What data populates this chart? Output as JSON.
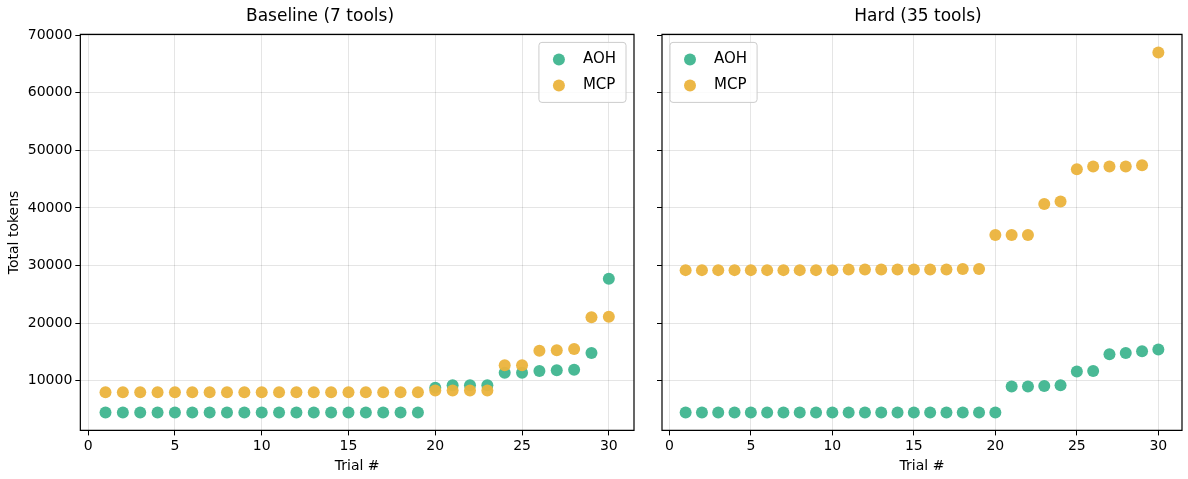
{
  "chart_data": [
    {
      "type": "scatter",
      "title": "Baseline (7 tools)",
      "xlabel": "Trial #",
      "ylabel": "Total tokens",
      "x": [
        1,
        2,
        3,
        4,
        5,
        6,
        7,
        8,
        9,
        10,
        11,
        12,
        13,
        14,
        15,
        16,
        17,
        18,
        19,
        20,
        21,
        22,
        23,
        24,
        25,
        26,
        27,
        28,
        29,
        30
      ],
      "series": [
        {
          "name": "AOH",
          "color": "#3fb58f",
          "values": [
            4500,
            4500,
            4500,
            4500,
            4500,
            4500,
            4500,
            4500,
            4500,
            4500,
            4500,
            4500,
            4500,
            4500,
            4500,
            4500,
            4500,
            4500,
            4500,
            8800,
            9200,
            9200,
            9200,
            11400,
            11400,
            11700,
            11800,
            11900,
            14800,
            27700
          ]
        },
        {
          "name": "MCP",
          "color": "#ebb33c",
          "values": [
            8000,
            8000,
            8000,
            8000,
            8000,
            8000,
            8000,
            8000,
            8000,
            8000,
            8000,
            8000,
            8000,
            8000,
            8000,
            8000,
            8000,
            8000,
            8000,
            8300,
            8300,
            8300,
            8300,
            12700,
            12700,
            15200,
            15300,
            15500,
            21000,
            21100
          ]
        }
      ],
      "xlim": [
        -0.45,
        31.45
      ],
      "xticks": [
        0,
        5,
        10,
        15,
        20,
        25,
        30
      ],
      "ylim": [
        1375,
        70125
      ],
      "yticks": [
        10000,
        20000,
        30000,
        40000,
        50000,
        60000,
        70000
      ],
      "grid": true,
      "legend": "top right",
      "marker": "circle"
    },
    {
      "type": "scatter",
      "title": "Hard (35 tools)",
      "xlabel": "Trial #",
      "x": [
        1,
        2,
        3,
        4,
        5,
        6,
        7,
        8,
        9,
        10,
        11,
        12,
        13,
        14,
        15,
        16,
        17,
        18,
        19,
        20,
        21,
        22,
        23,
        24,
        25,
        26,
        27,
        28,
        29,
        30
      ],
      "series": [
        {
          "name": "AOH",
          "color": "#3fb58f",
          "values": [
            4500,
            4500,
            4500,
            4500,
            4500,
            4500,
            4500,
            4500,
            4500,
            4500,
            4500,
            4500,
            4500,
            4500,
            4500,
            4500,
            4500,
            4500,
            4500,
            4500,
            9000,
            9000,
            9100,
            9200,
            11600,
            11700,
            14600,
            14800,
            15100,
            15400
          ]
        },
        {
          "name": "MCP",
          "color": "#ebb33c",
          "values": [
            29200,
            29200,
            29200,
            29200,
            29200,
            29200,
            29200,
            29200,
            29200,
            29200,
            29300,
            29300,
            29300,
            29300,
            29300,
            29300,
            29300,
            29400,
            29400,
            35300,
            35300,
            35300,
            40700,
            41100,
            46700,
            47200,
            47200,
            47200,
            47400,
            67000
          ]
        }
      ],
      "xlim": [
        -0.45,
        31.45
      ],
      "xticks": [
        0,
        5,
        10,
        15,
        20,
        25,
        30
      ],
      "ylim": [
        1375,
        70125
      ],
      "yticks": [
        10000,
        20000,
        30000,
        40000,
        50000,
        60000,
        70000
      ],
      "grid": true,
      "legend": "top left",
      "marker": "circle",
      "tick_labels": "x"
    }
  ]
}
